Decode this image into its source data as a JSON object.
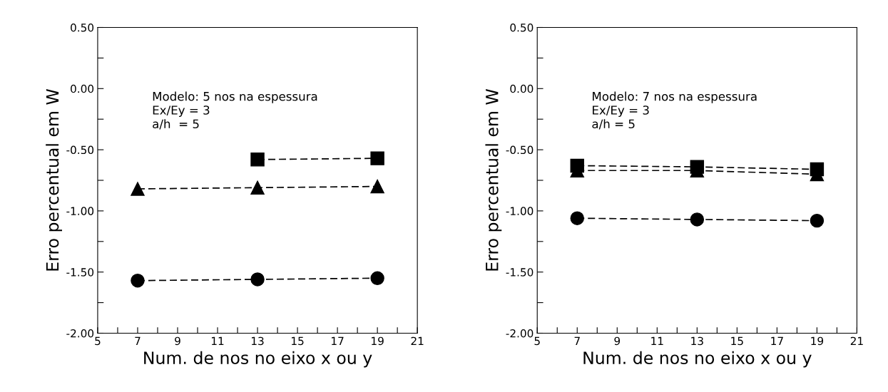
{
  "chart_data": [
    {
      "type": "line",
      "xlabel": "Num. de nos no eixo x ou y",
      "ylabel": "Erro percentual em W",
      "annotations": [
        "Modelo: 5 nos na espessura",
        "Ex/Ey = 3",
        "a/h  = 5"
      ],
      "xlim": [
        5,
        21
      ],
      "ylim": [
        -2.0,
        0.5
      ],
      "xticks": [
        5,
        {
          "value": 6,
          "label": null
        },
        7,
        {
          "value": 8,
          "label": null
        },
        9,
        {
          "value": 10,
          "label": null
        },
        11,
        {
          "value": 12,
          "label": null
        },
        13,
        {
          "value": 14,
          "label": null
        },
        15,
        {
          "value": 16,
          "label": null
        },
        17,
        {
          "value": 18,
          "label": null
        },
        19,
        {
          "value": 20,
          "label": null
        },
        21
      ],
      "yticks": [
        {
          "value": -2.0,
          "label": "-2.00"
        },
        {
          "value": -1.75,
          "label": null
        },
        {
          "value": -1.5,
          "label": "-1.50"
        },
        {
          "value": -1.25,
          "label": null
        },
        {
          "value": -1.0,
          "label": "-1.00"
        },
        {
          "value": -0.75,
          "label": null
        },
        {
          "value": -0.5,
          "label": "-0.50"
        },
        {
          "value": -0.25,
          "label": null
        },
        {
          "value": 0.0,
          "label": "0.00"
        },
        {
          "value": 0.25,
          "label": null
        },
        {
          "value": 0.5,
          "label": "0.50"
        }
      ],
      "grid": false,
      "legend": false,
      "line_style": "dashed",
      "series": [
        {
          "color": "#000000",
          "marker": "square",
          "x": [
            13,
            19
          ],
          "values": [
            -0.58,
            -0.57
          ]
        },
        {
          "color": "#000000",
          "marker": "triangle",
          "x": [
            7,
            13,
            19
          ],
          "values": [
            -0.82,
            -0.81,
            -0.8
          ]
        },
        {
          "color": "#000000",
          "marker": "circle",
          "x": [
            7,
            13,
            19
          ],
          "values": [
            -1.57,
            -1.56,
            -1.55
          ]
        }
      ]
    },
    {
      "type": "line",
      "xlabel": "Num. de nos no eixo x ou y",
      "ylabel": "Erro percentual em W",
      "annotations": [
        "Modelo: 7 nos na espessura",
        "Ex/Ey = 3",
        "a/h = 5"
      ],
      "xlim": [
        5,
        21
      ],
      "ylim": [
        -2.0,
        0.5
      ],
      "xticks": [
        5,
        {
          "value": 6,
          "label": null
        },
        7,
        {
          "value": 8,
          "label": null
        },
        9,
        {
          "value": 10,
          "label": null
        },
        11,
        {
          "value": 12,
          "label": null
        },
        13,
        {
          "value": 14,
          "label": null
        },
        15,
        {
          "value": 16,
          "label": null
        },
        17,
        {
          "value": 18,
          "label": null
        },
        19,
        {
          "value": 20,
          "label": null
        },
        21
      ],
      "yticks": [
        {
          "value": -2.0,
          "label": "-2.00"
        },
        {
          "value": -1.75,
          "label": null
        },
        {
          "value": -1.5,
          "label": "-1.50"
        },
        {
          "value": -1.25,
          "label": null
        },
        {
          "value": -1.0,
          "label": "-1.00"
        },
        {
          "value": -0.75,
          "label": null
        },
        {
          "value": -0.5,
          "label": "-0.50"
        },
        {
          "value": -0.25,
          "label": null
        },
        {
          "value": 0.0,
          "label": "0.00"
        },
        {
          "value": 0.25,
          "label": null
        },
        {
          "value": 0.5,
          "label": "0.50"
        }
      ],
      "grid": false,
      "legend": false,
      "line_style": "dashed",
      "series": [
        {
          "color": "#000000",
          "marker": "square",
          "x": [
            7,
            13,
            19
          ],
          "values": [
            -0.63,
            -0.64,
            -0.66
          ]
        },
        {
          "color": "#000000",
          "marker": "triangle",
          "x": [
            7,
            13,
            19
          ],
          "values": [
            -0.67,
            -0.67,
            -0.7
          ]
        },
        {
          "color": "#000000",
          "marker": "circle",
          "x": [
            7,
            13,
            19
          ],
          "values": [
            -1.06,
            -1.07,
            -1.08
          ]
        }
      ]
    }
  ]
}
